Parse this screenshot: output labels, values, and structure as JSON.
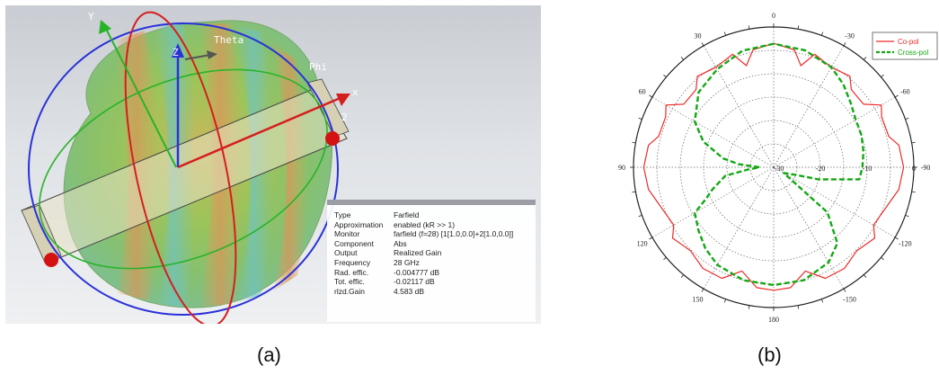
{
  "panel_a": {
    "axis_labels": {
      "y": "Y",
      "z": "Z",
      "x": "x",
      "theta": "Theta",
      "phi": "Phi",
      "port": "2"
    },
    "info": [
      {
        "key": "Type",
        "value": "Farfield"
      },
      {
        "key": "Approximation",
        "value": "enabled (kR >> 1)"
      },
      {
        "key": "Monitor",
        "value": "farfield (f=28) [1[1.0,0.0]+2[1.0,0.0]]"
      },
      {
        "key": "Component",
        "value": "Abs"
      },
      {
        "key": "Output",
        "value": "Realized Gain"
      },
      {
        "key": "Frequency",
        "value": "28 GHz"
      },
      {
        "key": "Rad. effic.",
        "value": "-0.004777 dB"
      },
      {
        "key": "Tot. effic.",
        "value": "-0.02117 dB"
      },
      {
        "key": "rlzd.Gain",
        "value": "4.583 dB"
      }
    ],
    "caption": "(a)"
  },
  "panel_b": {
    "caption": "(b)"
  },
  "chart_data": {
    "type": "polar",
    "angle_ticks": [
      "0",
      "30",
      "60",
      "90",
      "120",
      "150",
      "180",
      "-150",
      "-120",
      "-90",
      "-60",
      "-30"
    ],
    "radial_ticks": [
      "-30",
      "-20",
      "-10",
      "0"
    ],
    "rlim": [
      -30,
      0
    ],
    "legend_placement": "top-right",
    "series": [
      {
        "name": "Co-pol",
        "color": "#ee2a2a",
        "dash": "solid",
        "points": [
          [
            0,
            -3.5
          ],
          [
            10,
            -4.5
          ],
          [
            15,
            -7.5
          ],
          [
            20,
            -4.3
          ],
          [
            30,
            -5.3
          ],
          [
            40,
            -4.6
          ],
          [
            45,
            -6.5
          ],
          [
            55,
            -6.5
          ],
          [
            60,
            -3.4
          ],
          [
            65,
            -4.5
          ],
          [
            75,
            -4.5
          ],
          [
            80,
            -2.8
          ],
          [
            90,
            -2.2
          ],
          [
            100,
            -2.8
          ],
          [
            110,
            -4.5
          ],
          [
            120,
            -5.3
          ],
          [
            125,
            -3.6
          ],
          [
            135,
            -4.8
          ],
          [
            145,
            -3.6
          ],
          [
            155,
            -3.8
          ],
          [
            163,
            -6.8
          ],
          [
            172,
            -4.0
          ],
          [
            180,
            -3.7
          ],
          [
            188,
            -4.0
          ],
          [
            197,
            -6.8
          ],
          [
            205,
            -3.8
          ],
          [
            215,
            -3.6
          ],
          [
            225,
            -4.8
          ],
          [
            235,
            -3.6
          ],
          [
            240,
            -5.3
          ],
          [
            250,
            -4.5
          ],
          [
            260,
            -2.8
          ],
          [
            270,
            -2.2
          ],
          [
            280,
            -2.8
          ],
          [
            285,
            -4.5
          ],
          [
            295,
            -4.5
          ],
          [
            300,
            -3.4
          ],
          [
            305,
            -6.5
          ],
          [
            315,
            -6.5
          ],
          [
            320,
            -4.6
          ],
          [
            330,
            -5.3
          ],
          [
            340,
            -4.3
          ],
          [
            345,
            -7.5
          ],
          [
            350,
            -4.5
          ],
          [
            360,
            -3.5
          ]
        ]
      },
      {
        "name": "Cross-pol",
        "color": "#14a814",
        "dash": "dashed",
        "points": [
          [
            0,
            -3.6
          ],
          [
            15,
            -4.2
          ],
          [
            30,
            -5.8
          ],
          [
            45,
            -7.3
          ],
          [
            60,
            -10.5
          ],
          [
            70,
            -14.0
          ],
          [
            80,
            -19.0
          ],
          [
            85,
            -22.5
          ],
          [
            90,
            -27.0
          ],
          [
            95,
            -24.5
          ],
          [
            100,
            -19.5
          ],
          [
            110,
            -16.0
          ],
          [
            115,
            -14.0
          ],
          [
            120,
            -10.5
          ],
          [
            130,
            -9.0
          ],
          [
            140,
            -7.3
          ],
          [
            150,
            -5.9
          ],
          [
            165,
            -5.0
          ],
          [
            180,
            -4.8
          ],
          [
            195,
            -5.0
          ],
          [
            210,
            -6.5
          ],
          [
            220,
            -8.8
          ],
          [
            230,
            -15.0
          ],
          [
            240,
            -27.5
          ],
          [
            250,
            -25.5
          ],
          [
            255,
            -20.0
          ],
          [
            262,
            -11.5
          ],
          [
            270,
            -11.0
          ],
          [
            280,
            -10.5
          ],
          [
            290,
            -10.0
          ],
          [
            300,
            -9.7
          ],
          [
            310,
            -8.5
          ],
          [
            320,
            -6.8
          ],
          [
            330,
            -5.3
          ],
          [
            345,
            -4.1
          ],
          [
            360,
            -3.6
          ]
        ]
      }
    ]
  }
}
